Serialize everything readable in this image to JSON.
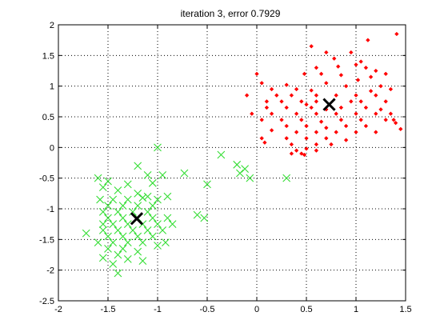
{
  "chart_data": {
    "type": "scatter",
    "title": "iteration 3, error 0.7929",
    "xlabel": "",
    "ylabel": "",
    "xlim": [
      -2,
      1.5
    ],
    "ylim": [
      -2.5,
      2
    ],
    "xticks": [
      -2,
      -1.5,
      -1,
      -0.5,
      0,
      0.5,
      1,
      1.5
    ],
    "yticks": [
      -2.5,
      -2,
      -1.5,
      -1,
      -0.5,
      0,
      0.5,
      1,
      1.5,
      2
    ],
    "xtick_labels": [
      "-2",
      "-1.5",
      "-1",
      "-0.5",
      "0",
      "0.5",
      "1",
      "1.5"
    ],
    "ytick_labels": [
      "-2.5",
      "-2",
      "-1.5",
      "-1",
      "-0.5",
      "0",
      "0.5",
      "1",
      "1.5",
      "2"
    ],
    "grid": true,
    "colors": {
      "cluster_red": "#ff0000",
      "cluster_green": "#33dd33",
      "centroid": "#000000"
    },
    "series": [
      {
        "marker": "diamond",
        "color": "#ff0000",
        "points": [
          [
            1.41,
            1.85
          ],
          [
            1.12,
            1.75
          ],
          [
            0.55,
            1.65
          ],
          [
            0.95,
            1.55
          ],
          [
            0.7,
            1.55
          ],
          [
            1.05,
            1.4
          ],
          [
            0.78,
            1.45
          ],
          [
            0.6,
            1.3
          ],
          [
            0.82,
            1.32
          ],
          [
            1.0,
            1.35
          ],
          [
            1.1,
            1.3
          ],
          [
            1.2,
            1.25
          ],
          [
            1.3,
            1.2
          ],
          [
            1.15,
            1.15
          ],
          [
            0.0,
            1.2
          ],
          [
            0.48,
            1.2
          ],
          [
            0.65,
            1.2
          ],
          [
            0.85,
            1.18
          ],
          [
            1.02,
            1.1
          ],
          [
            0.7,
            1.05
          ],
          [
            0.9,
            1.0
          ],
          [
            0.05,
            1.05
          ],
          [
            0.3,
            1.02
          ],
          [
            1.25,
            1.0
          ],
          [
            0.15,
            0.95
          ],
          [
            0.4,
            0.95
          ],
          [
            0.55,
            0.93
          ],
          [
            1.15,
            0.92
          ],
          [
            1.35,
            0.95
          ],
          [
            -0.1,
            0.85
          ],
          [
            0.2,
            0.85
          ],
          [
            0.35,
            0.85
          ],
          [
            0.6,
            0.85
          ],
          [
            0.8,
            0.85
          ],
          [
            1.0,
            0.85
          ],
          [
            1.2,
            0.85
          ],
          [
            0.1,
            0.75
          ],
          [
            0.25,
            0.75
          ],
          [
            0.45,
            0.75
          ],
          [
            0.5,
            0.7
          ],
          [
            0.6,
            0.75
          ],
          [
            0.95,
            0.75
          ],
          [
            1.05,
            0.75
          ],
          [
            1.3,
            0.75
          ],
          [
            0.1,
            0.65
          ],
          [
            0.3,
            0.65
          ],
          [
            0.55,
            0.65
          ],
          [
            0.7,
            0.62
          ],
          [
            0.85,
            0.65
          ],
          [
            1.1,
            0.65
          ],
          [
            1.25,
            0.62
          ],
          [
            -0.05,
            0.55
          ],
          [
            0.15,
            0.55
          ],
          [
            0.4,
            0.55
          ],
          [
            0.6,
            0.55
          ],
          [
            0.8,
            0.55
          ],
          [
            1.0,
            0.55
          ],
          [
            1.2,
            0.55
          ],
          [
            1.35,
            0.55
          ],
          [
            0.05,
            0.45
          ],
          [
            0.25,
            0.45
          ],
          [
            0.45,
            0.45
          ],
          [
            0.65,
            0.42
          ],
          [
            0.85,
            0.45
          ],
          [
            1.05,
            0.45
          ],
          [
            1.3,
            0.45
          ],
          [
            0.3,
            0.35
          ],
          [
            0.5,
            0.35
          ],
          [
            0.7,
            0.32
          ],
          [
            0.9,
            0.35
          ],
          [
            1.1,
            0.35
          ],
          [
            1.38,
            0.45
          ],
          [
            0.15,
            0.28
          ],
          [
            0.4,
            0.25
          ],
          [
            0.6,
            0.25
          ],
          [
            0.8,
            0.25
          ],
          [
            1.0,
            0.25
          ],
          [
            1.2,
            0.25
          ],
          [
            1.45,
            0.3
          ],
          [
            0.05,
            0.15
          ],
          [
            0.3,
            0.15
          ],
          [
            0.5,
            0.15
          ],
          [
            0.7,
            0.15
          ],
          [
            0.9,
            0.12
          ],
          [
            1.4,
            0.4
          ],
          [
            0.08,
            0.08
          ],
          [
            0.35,
            0.05
          ],
          [
            0.6,
            0.05
          ],
          [
            0.75,
            0.05
          ],
          [
            0.4,
            -0.05
          ],
          [
            0.5,
            -0.02
          ],
          [
            0.35,
            -0.1
          ],
          [
            0.45,
            -0.1
          ],
          [
            0.6,
            -0.05
          ],
          [
            0.48,
            -0.12
          ]
        ]
      },
      {
        "marker": "x",
        "color": "#33dd33",
        "points": [
          [
            -1.0,
            0.0
          ],
          [
            -0.36,
            -0.12
          ],
          [
            -0.2,
            -0.28
          ],
          [
            -0.12,
            -0.35
          ],
          [
            -0.17,
            -0.42
          ],
          [
            0.3,
            -0.5
          ],
          [
            -0.07,
            -0.5
          ],
          [
            -1.2,
            -0.3
          ],
          [
            -0.95,
            -0.45
          ],
          [
            -0.73,
            -0.42
          ],
          [
            -1.1,
            -0.45
          ],
          [
            -1.6,
            -0.5
          ],
          [
            -1.5,
            -0.55
          ],
          [
            -0.5,
            -0.6
          ],
          [
            -1.3,
            -0.6
          ],
          [
            -1.05,
            -0.58
          ],
          [
            -1.55,
            -0.65
          ],
          [
            -1.4,
            -0.7
          ],
          [
            -1.2,
            -0.75
          ],
          [
            -1.1,
            -0.8
          ],
          [
            -0.9,
            -0.8
          ],
          [
            -1.58,
            -0.85
          ],
          [
            -1.45,
            -0.85
          ],
          [
            -1.3,
            -0.85
          ],
          [
            -1.15,
            -0.82
          ],
          [
            -1.0,
            -0.85
          ],
          [
            -1.5,
            -0.95
          ],
          [
            -1.35,
            -0.95
          ],
          [
            -1.2,
            -0.95
          ],
          [
            -1.05,
            -0.95
          ],
          [
            -1.55,
            -1.05
          ],
          [
            -1.4,
            -1.05
          ],
          [
            -1.25,
            -1.05
          ],
          [
            -1.1,
            -1.05
          ],
          [
            -0.6,
            -1.1
          ],
          [
            -0.53,
            -1.15
          ],
          [
            -1.5,
            -1.15
          ],
          [
            -1.35,
            -1.15
          ],
          [
            -1.2,
            -1.15
          ],
          [
            -1.05,
            -1.15
          ],
          [
            -0.9,
            -1.15
          ],
          [
            -1.55,
            -1.25
          ],
          [
            -1.45,
            -1.25
          ],
          [
            -1.3,
            -1.25
          ],
          [
            -1.15,
            -1.25
          ],
          [
            -1.0,
            -1.25
          ],
          [
            -0.85,
            -1.25
          ],
          [
            -1.55,
            -1.35
          ],
          [
            -1.4,
            -1.35
          ],
          [
            -1.25,
            -1.35
          ],
          [
            -1.1,
            -1.35
          ],
          [
            -0.95,
            -1.35
          ],
          [
            -1.72,
            -1.4
          ],
          [
            -1.5,
            -1.45
          ],
          [
            -1.35,
            -1.45
          ],
          [
            -1.2,
            -1.45
          ],
          [
            -1.05,
            -1.45
          ],
          [
            -0.92,
            -1.55
          ],
          [
            -1.6,
            -1.55
          ],
          [
            -1.45,
            -1.55
          ],
          [
            -1.3,
            -1.55
          ],
          [
            -1.15,
            -1.55
          ],
          [
            -1.0,
            -1.6
          ],
          [
            -1.5,
            -1.65
          ],
          [
            -1.35,
            -1.65
          ],
          [
            -1.2,
            -1.7
          ],
          [
            -1.4,
            -1.75
          ],
          [
            -1.55,
            -1.8
          ],
          [
            -1.3,
            -1.82
          ],
          [
            -1.15,
            -1.85
          ],
          [
            -1.45,
            -1.9
          ],
          [
            -1.4,
            -2.05
          ]
        ]
      }
    ],
    "centroids": [
      [
        0.73,
        0.7
      ],
      [
        -1.21,
        -1.16
      ]
    ]
  }
}
